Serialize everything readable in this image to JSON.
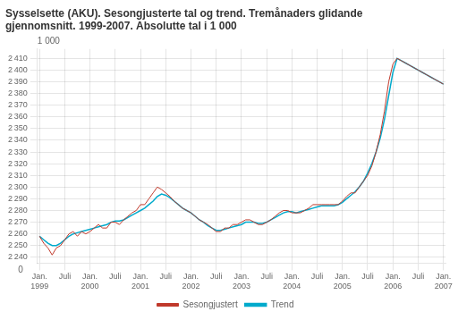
{
  "chart_data": {
    "type": "line",
    "title": "Sysselsette (AKU). Sesongjusterte tal og trend. Tremånaders glidande\ngjennomsnitt. 1999-2007. Absolutte tal i 1 000",
    "ylabel": "1 000",
    "annotations": [
      "0"
    ],
    "categories": [
      "Jan.\n1999",
      null,
      null,
      null,
      null,
      null,
      "Juli",
      null,
      null,
      null,
      null,
      null,
      "Jan.\n2000",
      null,
      null,
      null,
      null,
      null,
      "Juli",
      null,
      null,
      null,
      null,
      null,
      "Jan.\n2001",
      null,
      null,
      null,
      null,
      null,
      "Juli",
      null,
      null,
      null,
      null,
      null,
      "Jan.\n2002",
      null,
      null,
      null,
      null,
      null,
      "Juli",
      null,
      null,
      null,
      null,
      null,
      "Jan.\n2003",
      null,
      null,
      null,
      null,
      null,
      "Juli",
      null,
      null,
      null,
      null,
      null,
      "Jan.\n2004",
      null,
      null,
      null,
      null,
      null,
      "Juli",
      null,
      null,
      null,
      null,
      null,
      "Jan.\n2005",
      null,
      null,
      null,
      null,
      null,
      "Juli",
      null,
      null,
      null,
      null,
      null,
      "Jan.\n2006",
      null,
      null,
      null,
      null,
      null,
      "Juli",
      null,
      null,
      null,
      null,
      null,
      "Jan.\n2007"
    ],
    "series": [
      {
        "name": "Sesongjustert",
        "color": "#c0392b",
        "values": [
          2258,
          2252,
          2248,
          2242,
          2248,
          2250,
          2255,
          2260,
          2262,
          2258,
          2262,
          2260,
          2262,
          2265,
          2268,
          2265,
          2265,
          2270,
          2270,
          2268,
          2272,
          2275,
          2278,
          2280,
          2285,
          2285,
          2290,
          2295,
          2300,
          2298,
          2295,
          2292,
          2288,
          2285,
          2282,
          2280,
          2278,
          2275,
          2272,
          2270,
          2268,
          2265,
          2262,
          2262,
          2265,
          2265,
          2268,
          2268,
          2270,
          2272,
          2272,
          2270,
          2268,
          2268,
          2270,
          2272,
          2275,
          2278,
          2280,
          2280,
          2278,
          2278,
          2278,
          2280,
          2282,
          2285,
          2285,
          2285,
          2285,
          2285,
          2285,
          2285,
          2288,
          2292,
          2295,
          2295,
          2300,
          2305,
          2310,
          2318,
          2330,
          2345,
          2365,
          2390,
          2405,
          2410,
          2408,
          2406,
          2404,
          2402,
          2400,
          2398,
          2396,
          2394,
          2392,
          2390,
          2388
        ]
      },
      {
        "name": "Trend",
        "color": "#00aacc",
        "values": [
          2258,
          2255,
          2252,
          2250,
          2250,
          2252,
          2255,
          2258,
          2260,
          2261,
          2262,
          2263,
          2264,
          2265,
          2266,
          2267,
          2268,
          2270,
          2271,
          2271,
          2272,
          2274,
          2276,
          2278,
          2280,
          2282,
          2285,
          2288,
          2292,
          2294,
          2293,
          2291,
          2288,
          2285,
          2282,
          2280,
          2278,
          2275,
          2272,
          2270,
          2267,
          2265,
          2263,
          2263,
          2264,
          2265,
          2266,
          2267,
          2268,
          2270,
          2270,
          2270,
          2269,
          2269,
          2270,
          2272,
          2274,
          2276,
          2278,
          2279,
          2279,
          2278,
          2279,
          2280,
          2281,
          2282,
          2283,
          2284,
          2284,
          2284,
          2284,
          2285,
          2287,
          2290,
          2293,
          2296,
          2300,
          2305,
          2312,
          2320,
          2330,
          2342,
          2358,
          2378,
          2398,
          2410,
          2408,
          2406,
          2404,
          2402,
          2400,
          2398,
          2396,
          2394,
          2392,
          2390,
          2388
        ]
      }
    ],
    "ylim": [
      2235,
      2418
    ],
    "yticks": [
      {
        "value": 2240,
        "label": "2 240"
      },
      {
        "value": 2250,
        "label": "2 250"
      },
      {
        "value": 2260,
        "label": "2 260"
      },
      {
        "value": 2270,
        "label": "2 270"
      },
      {
        "value": 2280,
        "label": "2 280"
      },
      {
        "value": 2290,
        "label": "2 290"
      },
      {
        "value": 2300,
        "label": "2 300"
      },
      {
        "value": 2310,
        "label": "2 310"
      },
      {
        "value": 2320,
        "label": "2 320"
      },
      {
        "value": 2330,
        "label": "2 330"
      },
      {
        "value": 2340,
        "label": "2 340"
      },
      {
        "value": 2350,
        "label": "2 350"
      },
      {
        "value": 2360,
        "label": "2 360"
      },
      {
        "value": 2370,
        "label": "2 370"
      },
      {
        "value": 2380,
        "label": "2 380"
      },
      {
        "value": 2390,
        "label": "2 390"
      },
      {
        "value": 2400,
        "label": "2 400"
      },
      {
        "value": 2410,
        "label": "2 410"
      }
    ],
    "grid": true,
    "legend": "bottom"
  }
}
